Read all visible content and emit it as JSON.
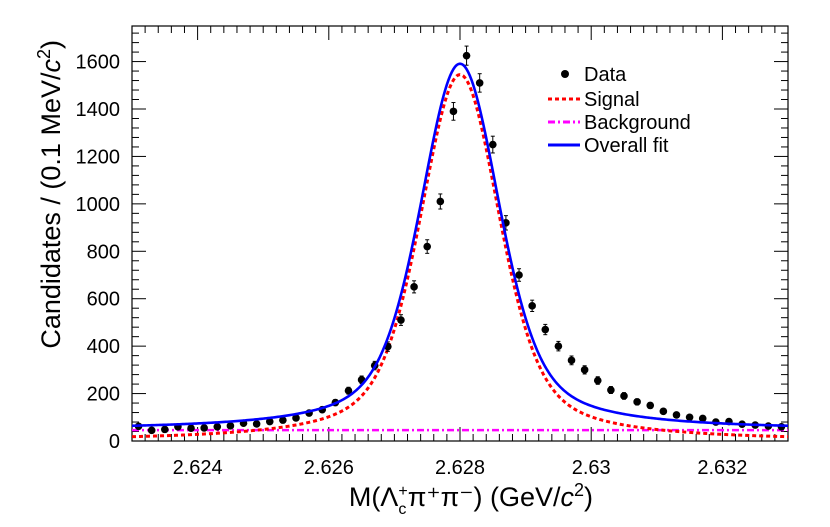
{
  "chart_data": {
    "type": "scatter",
    "title": "",
    "xlabel": {
      "prefix": "M(Λ",
      "sub": "c",
      "sup": "+",
      "mid": "π⁺π⁻) (GeV/",
      "italic": "c",
      "power": "2",
      "close": ")"
    },
    "ylabel": {
      "prefix": "Candidates / (0.1 MeV/",
      "italic": "c",
      "power": "2",
      "close": ")"
    },
    "xlim": [
      2.623,
      2.633
    ],
    "ylim": [
      0,
      1750
    ],
    "x_ticks": [
      2.624,
      2.626,
      2.628,
      2.63,
      2.632
    ],
    "x_tick_labels": [
      "2.624",
      "2.626",
      "2.628",
      "2.63",
      "2.632"
    ],
    "y_ticks": [
      0,
      200,
      400,
      600,
      800,
      1000,
      1200,
      1400,
      1600
    ],
    "y_tick_labels": [
      "0",
      "200",
      "400",
      "600",
      "800",
      "1000",
      "1200",
      "1400",
      "1600"
    ],
    "legend": {
      "position": "top-right",
      "entries": [
        {
          "label": "Data",
          "style": "marker",
          "color": "#000000"
        },
        {
          "label": "Signal",
          "style": "dashed",
          "color": "#ff0000"
        },
        {
          "label": "Background",
          "style": "dashdot",
          "color": "#ff00ff"
        },
        {
          "label": "Overall fit",
          "style": "solid",
          "color": "#0000ff"
        }
      ]
    },
    "model": {
      "peak_mean": 2.628,
      "signal_peak": 1545,
      "signal_fwhm": 0.00148,
      "signal_core_fraction": 0.55,
      "signal_core_sigma": 0.00058,
      "signal_tail_gamma": 0.00082,
      "background_level": 46
    },
    "series": [
      {
        "name": "Data",
        "x": [
          2.6231,
          2.6233,
          2.6235,
          2.6237,
          2.6239,
          2.6241,
          2.6243,
          2.6245,
          2.6247,
          2.6249,
          2.6251,
          2.6253,
          2.6255,
          2.6257,
          2.6259,
          2.6261,
          2.6263,
          2.6265,
          2.6267,
          2.6269,
          2.6271,
          2.6273,
          2.6275,
          2.6277,
          2.6279,
          2.6281,
          2.6283,
          2.6285,
          2.6287,
          2.6289,
          2.6291,
          2.6293,
          2.6295,
          2.6297,
          2.6299,
          2.6301,
          2.6303,
          2.6305,
          2.6307,
          2.6309,
          2.6311,
          2.6313,
          2.6315,
          2.6317,
          2.6319,
          2.6321,
          2.6323,
          2.6325,
          2.6327,
          2.6329
        ],
        "y": [
          62,
          45,
          49,
          60,
          54,
          55,
          60,
          64,
          75,
          72,
          82,
          88,
          97,
          118,
          132,
          162,
          212,
          258,
          318,
          398,
          510,
          650,
          820,
          1010,
          1390,
          1625,
          1510,
          1250,
          920,
          700,
          570,
          470,
          400,
          340,
          300,
          255,
          215,
          190,
          165,
          150,
          125,
          110,
          100,
          95,
          80,
          82,
          71,
          67,
          63,
          60
        ]
      }
    ]
  }
}
